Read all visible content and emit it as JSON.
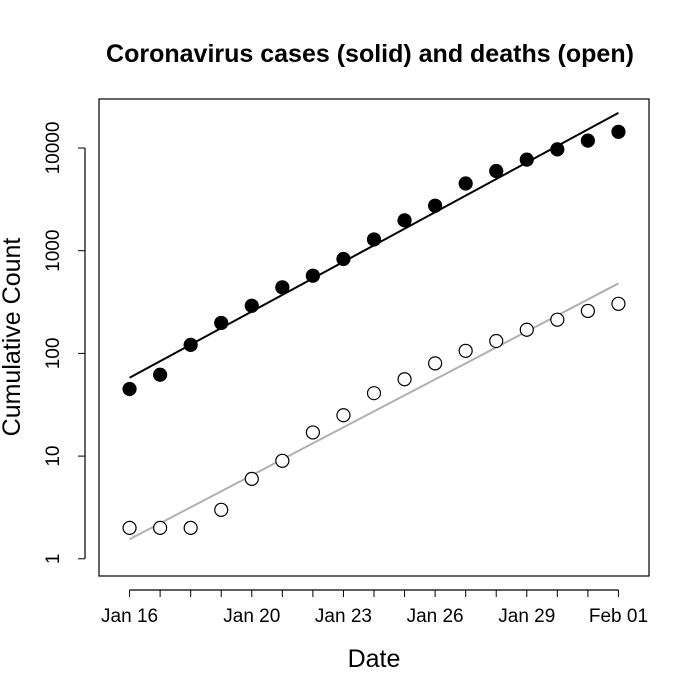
{
  "chart_data": {
    "type": "scatter",
    "title": "Coronavirus cases (solid) and deaths (open)",
    "xlabel": "Date",
    "ylabel": "Cumulative Count",
    "y_scale": "log",
    "ylim": [
      0.68,
      30000
    ],
    "xlim": [
      "2020-01-15",
      "2020-02-02"
    ],
    "grid": false,
    "x_ticks": [
      {
        "date": "2020-01-16",
        "label": "Jan 16"
      },
      {
        "date": "2020-01-20",
        "label": "Jan 20"
      },
      {
        "date": "2020-01-23",
        "label": "Jan 23"
      },
      {
        "date": "2020-01-26",
        "label": "Jan 26"
      },
      {
        "date": "2020-01-29",
        "label": "Jan 29"
      },
      {
        "date": "2020-02-01",
        "label": "Feb 01"
      }
    ],
    "y_ticks": [
      {
        "value": 1,
        "label": "1"
      },
      {
        "value": 10,
        "label": "10"
      },
      {
        "value": 100,
        "label": "100"
      },
      {
        "value": 1000,
        "label": "1000"
      },
      {
        "value": 10000,
        "label": "10000"
      }
    ],
    "series": [
      {
        "marker": "filled-circle",
        "color": "#000000",
        "x": [
          "2020-01-16",
          "2020-01-17",
          "2020-01-18",
          "2020-01-19",
          "2020-01-20",
          "2020-01-21",
          "2020-01-22",
          "2020-01-23",
          "2020-01-24",
          "2020-01-25",
          "2020-01-26",
          "2020-01-27",
          "2020-01-28",
          "2020-01-29",
          "2020-01-30",
          "2020-01-31",
          "2020-02-01"
        ],
        "y": [
          45,
          62,
          121,
          198,
          291,
          440,
          571,
          830,
          1287,
          1975,
          2744,
          4515,
          5974,
          7711,
          9692,
          11791,
          14380
        ],
        "fit_line": {
          "color": "#000000",
          "x": [
            "2020-01-16",
            "2020-02-01"
          ],
          "y": [
            58,
            22000
          ]
        }
      },
      {
        "marker": "open-circle",
        "color": "#000000",
        "x": [
          "2020-01-16",
          "2020-01-17",
          "2020-01-18",
          "2020-01-19",
          "2020-01-20",
          "2020-01-21",
          "2020-01-22",
          "2020-01-23",
          "2020-01-24",
          "2020-01-25",
          "2020-01-26",
          "2020-01-27",
          "2020-01-28",
          "2020-01-29",
          "2020-01-30",
          "2020-01-31",
          "2020-02-01"
        ],
        "y": [
          2,
          2,
          2,
          3,
          6,
          9,
          17,
          25,
          41,
          56,
          80,
          106,
          132,
          170,
          213,
          259,
          304
        ],
        "fit_line": {
          "color": "#b0b0b0",
          "x": [
            "2020-01-16",
            "2020-02-01"
          ],
          "y": [
            1.55,
            480
          ]
        }
      }
    ]
  }
}
